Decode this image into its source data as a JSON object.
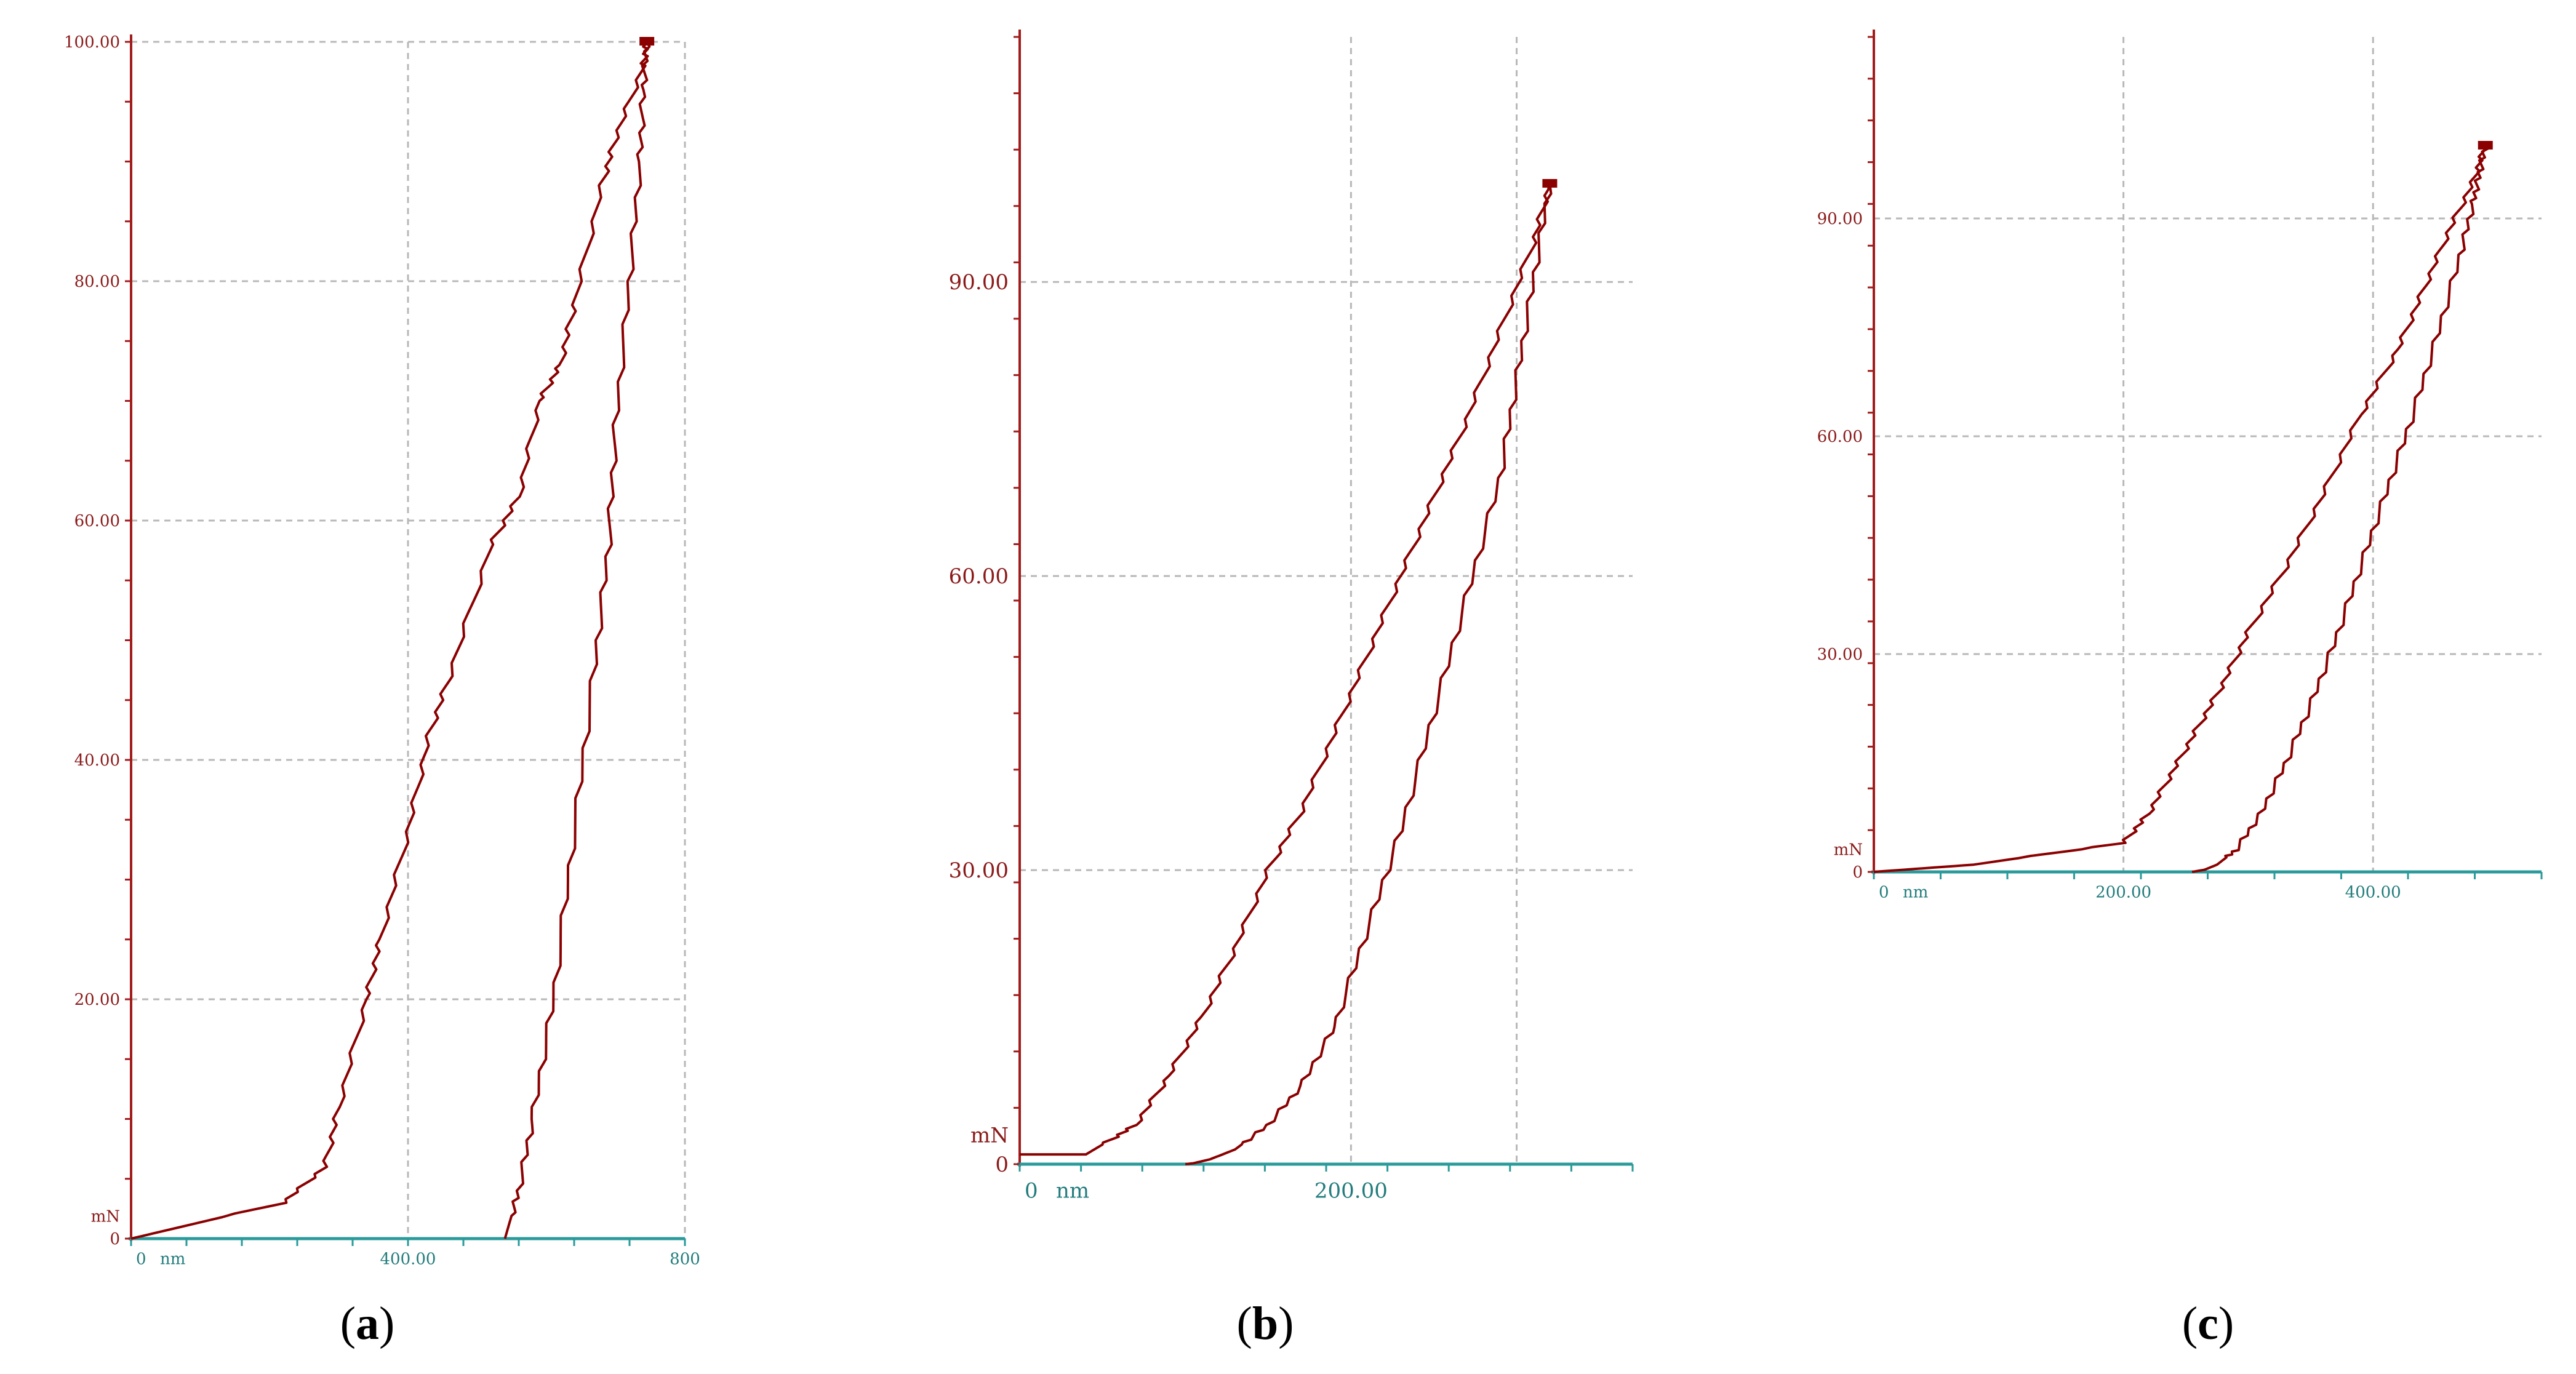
{
  "chart_data": [
    {
      "type": "line",
      "caption_letter": "a",
      "x_unit": "nm",
      "y_unit": "mN",
      "xlim": [
        0,
        800
      ],
      "ylim": [
        0,
        100
      ],
      "x_ticks": [
        {
          "value": 0,
          "label": "0"
        },
        {
          "value": 400,
          "label": "400.00"
        },
        {
          "value": 800,
          "label": "800"
        }
      ],
      "x_grid": [
        400,
        800
      ],
      "y_ticks": [
        {
          "value": 0,
          "label": "0"
        },
        {
          "value": 20,
          "label": "20.00"
        },
        {
          "value": 40,
          "label": "40.00"
        },
        {
          "value": 60,
          "label": "60.00"
        },
        {
          "value": 80,
          "label": "80.00"
        },
        {
          "value": 100,
          "label": "100.00"
        }
      ],
      "y_grid": [
        20,
        40,
        60,
        80,
        100
      ],
      "grid": true,
      "series": [
        {
          "role": "loading",
          "x": [
            0,
            220,
            280,
            300,
            340,
            360,
            400,
            430,
            460,
            520,
            560,
            590,
            620,
            640,
            680,
            700,
            740,
            745
          ],
          "y": [
            0,
            3,
            6,
            11,
            20,
            25,
            34,
            42,
            47,
            58,
            62,
            70,
            73,
            78,
            88,
            92,
            98,
            100
          ]
        },
        {
          "role": "unloading",
          "x": [
            745,
            740,
            735,
            720,
            700,
            690,
            670,
            640,
            610,
            580,
            560,
            545,
            540
          ],
          "y": [
            100,
            96,
            90,
            80,
            68,
            58,
            48,
            34,
            20,
            10,
            4,
            1,
            0
          ]
        }
      ]
    },
    {
      "type": "line",
      "caption_letter": "b",
      "x_unit": "nm",
      "y_unit": "mN",
      "xlim": [
        0,
        370
      ],
      "ylim": [
        0,
        115
      ],
      "x_ticks": [
        {
          "value": 0,
          "label": "0"
        },
        {
          "value": 200,
          "label": "200.00"
        }
      ],
      "x_grid": [
        200,
        300
      ],
      "y_ticks": [
        {
          "value": 0,
          "label": "0"
        },
        {
          "value": 30,
          "label": "30.00"
        },
        {
          "value": 60,
          "label": "60.00"
        },
        {
          "value": 90,
          "label": "90.00"
        }
      ],
      "y_grid": [
        30,
        60,
        90
      ],
      "grid": true,
      "series": [
        {
          "role": "loading",
          "x": [
            0,
            40,
            50,
            70,
            90,
            110,
            130,
            150,
            170,
            190,
            210,
            230,
            250,
            270,
            290,
            310,
            320
          ],
          "y": [
            1,
            1,
            2,
            4,
            9,
            15,
            22,
            30,
            36,
            44,
            52,
            60,
            68,
            76,
            85,
            94,
            100
          ]
        },
        {
          "role": "unloading",
          "x": [
            320,
            310,
            300,
            290,
            270,
            250,
            230,
            210,
            190,
            170,
            150,
            130,
            115,
            105,
            100
          ],
          "y": [
            100,
            90,
            80,
            70,
            58,
            46,
            34,
            24,
            14,
            8,
            4,
            1.5,
            0.5,
            0.1,
            0
          ]
        }
      ]
    },
    {
      "type": "line",
      "caption_letter": "c",
      "x_unit": "nm",
      "y_unit": "mN",
      "xlim": [
        0,
        535
      ],
      "ylim": [
        0,
        115
      ],
      "x_ticks": [
        {
          "value": 0,
          "label": "0"
        },
        {
          "value": 200,
          "label": "200.00"
        },
        {
          "value": 400,
          "label": "400.00"
        }
      ],
      "x_grid": [
        200,
        400
      ],
      "y_ticks": [
        {
          "value": 0,
          "label": "0"
        },
        {
          "value": 30,
          "label": "30.00"
        },
        {
          "value": 60,
          "label": "60.00"
        },
        {
          "value": 90,
          "label": "90.00"
        }
      ],
      "y_grid": [
        30,
        60,
        90
      ],
      "grid": true,
      "series": [
        {
          "role": "loading",
          "x": [
            0,
            80,
            200,
            220,
            240,
            260,
            280,
            300,
            330,
            360,
            390,
            420,
            440,
            460,
            480,
            490
          ],
          "y": [
            0,
            1,
            4,
            8,
            14,
            20,
            26,
            33,
            42,
            52,
            63,
            72,
            80,
            88,
            95,
            100
          ]
        },
        {
          "role": "unloading",
          "x": [
            490,
            485,
            480,
            470,
            450,
            430,
            410,
            390,
            370,
            350,
            330,
            310,
            290,
            275,
            265,
            255
          ],
          "y": [
            100,
            96,
            92,
            85,
            73,
            62,
            52,
            42,
            32,
            23,
            15,
            8,
            3,
            1,
            0.3,
            0
          ]
        }
      ]
    }
  ],
  "captions": [
    {
      "open": "(",
      "letter": "a",
      "close": ")"
    },
    {
      "open": "(",
      "letter": "b",
      "close": ")"
    },
    {
      "open": "(",
      "letter": "c",
      "close": ")"
    }
  ],
  "colors": {
    "curve": "#8b0000",
    "y_axis": "#a11c1c",
    "x_axis": "#2a9a9a",
    "grid": "#b8b8b8",
    "y_label": "#8b1a1a",
    "x_label": "#237c7c"
  }
}
